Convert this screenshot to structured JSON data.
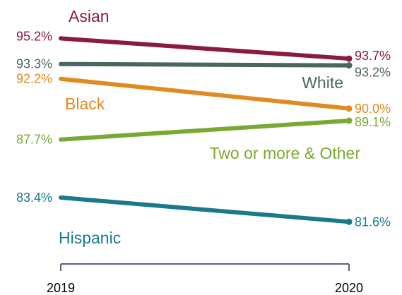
{
  "chart_data": {
    "type": "line",
    "title": "",
    "xlabel": "",
    "ylabel": "",
    "x": [
      "2019",
      "2020"
    ],
    "ylim": [
      79,
      97
    ],
    "grid": false,
    "series": [
      {
        "name": "Asian",
        "values": [
          95.2,
          93.7
        ],
        "labels": [
          "95.2%",
          "93.7%"
        ],
        "color": "#8b1a42"
      },
      {
        "name": "White",
        "values": [
          93.3,
          93.2
        ],
        "labels": [
          "93.3%",
          "93.2%"
        ],
        "color": "#4a6660"
      },
      {
        "name": "Black",
        "values": [
          92.2,
          90.0
        ],
        "labels": [
          "92.2%",
          "90.0%"
        ],
        "color": "#e08a22"
      },
      {
        "name": "Two or more & Other",
        "values": [
          87.7,
          89.1
        ],
        "labels": [
          "87.7%",
          "89.1%"
        ],
        "color": "#7ba832"
      },
      {
        "name": "Hispanic",
        "values": [
          83.4,
          81.6
        ],
        "labels": [
          "83.4%",
          "81.6%"
        ],
        "color": "#1a7a8c"
      }
    ]
  }
}
